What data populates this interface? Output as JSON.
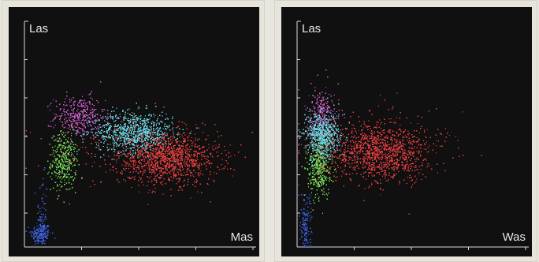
{
  "chart_data": [
    {
      "type": "scatter",
      "xlabel": "Mas",
      "ylabel": "Las",
      "grid": false,
      "ticks": 9,
      "clusters": [
        {
          "color": "#3b5fd8",
          "cx": 0.07,
          "cy": 0.06,
          "sx": 0.022,
          "sy": 0.025,
          "count": 180
        },
        {
          "color": "#3f62e0",
          "cx": 0.075,
          "cy": 0.16,
          "sx": 0.012,
          "sy": 0.08,
          "count": 55
        },
        {
          "color": "#74d858",
          "cx": 0.17,
          "cy": 0.38,
          "sx": 0.028,
          "sy": 0.065,
          "count": 340
        },
        {
          "color": "#c75bc7",
          "cx": 0.24,
          "cy": 0.58,
          "sx": 0.055,
          "sy": 0.045,
          "count": 360
        },
        {
          "color": "#6bd3df",
          "cx": 0.48,
          "cy": 0.51,
          "sx": 0.085,
          "sy": 0.045,
          "count": 900
        },
        {
          "color": "#e33d3d",
          "cx": 0.63,
          "cy": 0.39,
          "sx": 0.11,
          "sy": 0.055,
          "count": 1100
        },
        {
          "color": "#e33d3d",
          "cx": 0.5,
          "cy": 0.43,
          "sx": 0.19,
          "sy": 0.07,
          "count": 180
        }
      ]
    },
    {
      "type": "scatter",
      "xlabel": "Was",
      "ylabel": "Las",
      "grid": false,
      "ticks": 9,
      "clusters": [
        {
          "color": "#3b5fd8",
          "cx": 0.035,
          "cy": 0.09,
          "sx": 0.012,
          "sy": 0.06,
          "count": 140
        },
        {
          "color": "#74d858",
          "cx": 0.095,
          "cy": 0.35,
          "sx": 0.025,
          "sy": 0.07,
          "count": 380
        },
        {
          "color": "#c75bc7",
          "cx": 0.11,
          "cy": 0.59,
          "sx": 0.03,
          "sy": 0.06,
          "count": 250
        },
        {
          "color": "#6bd3df",
          "cx": 0.11,
          "cy": 0.5,
          "sx": 0.04,
          "sy": 0.05,
          "count": 650
        },
        {
          "color": "#e33d3d",
          "cx": 0.37,
          "cy": 0.42,
          "sx": 0.11,
          "sy": 0.065,
          "count": 1100
        },
        {
          "color": "#e33d3d",
          "cx": 0.28,
          "cy": 0.47,
          "sx": 0.2,
          "sy": 0.08,
          "count": 160
        }
      ]
    }
  ]
}
